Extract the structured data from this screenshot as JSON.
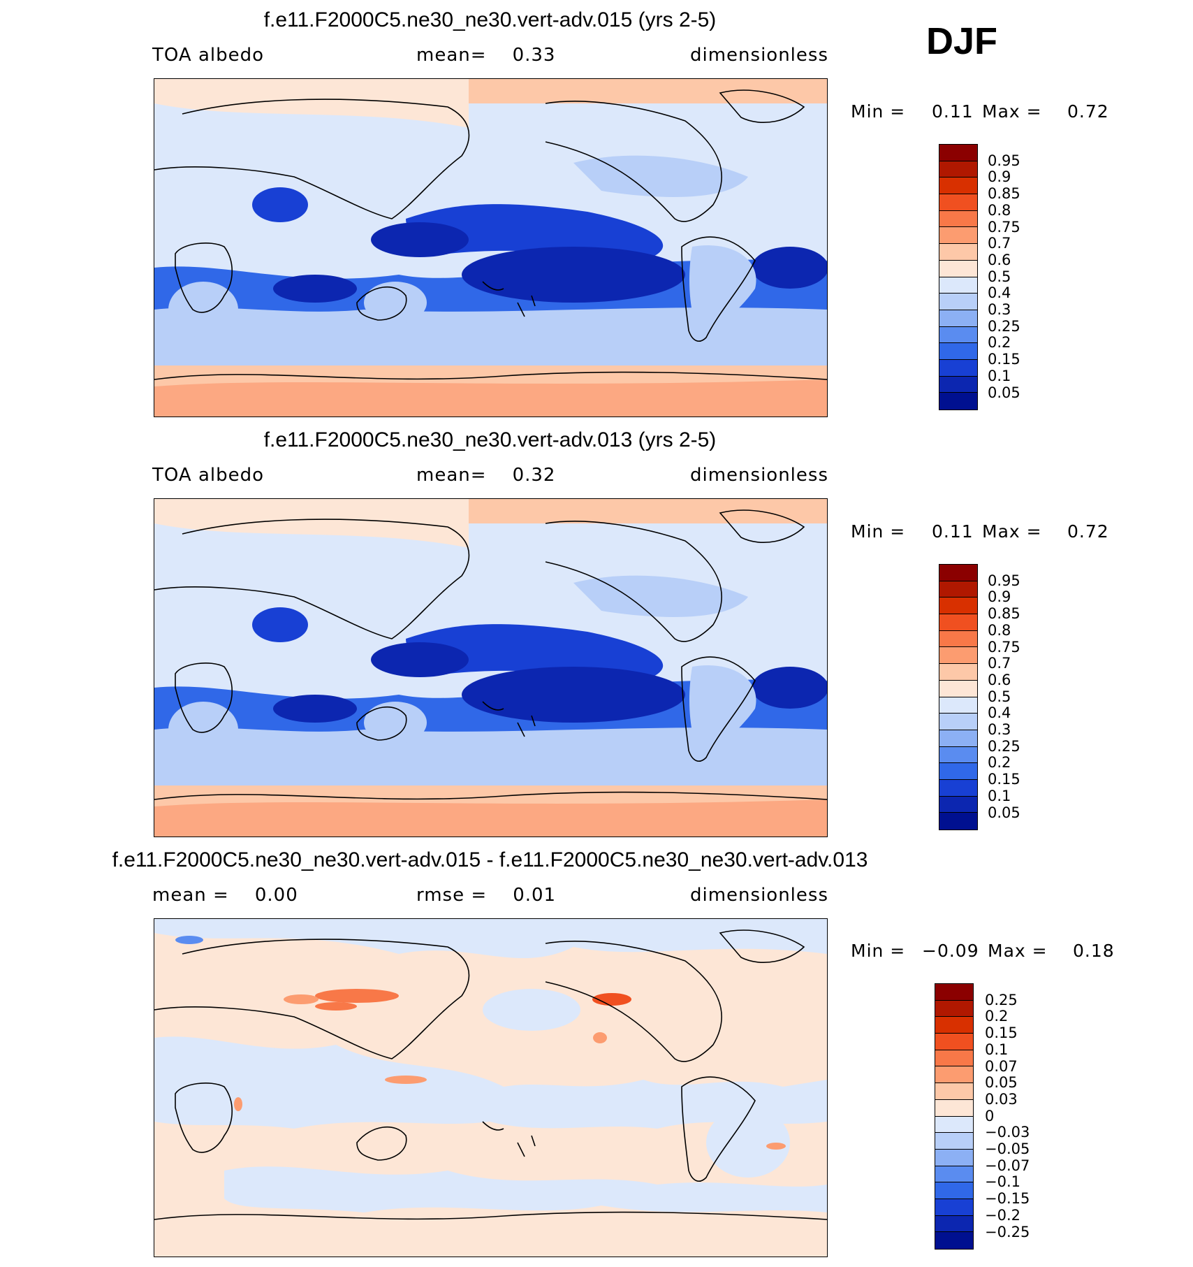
{
  "season": "DJF",
  "panels": [
    {
      "title": "f.e11.F2000C5.ne30_ne30.vert-adv.015 (yrs 2-5)",
      "left_text": "TOA albedo",
      "middle_text": "mean=    0.33",
      "right_text": "dimensionless",
      "min_label": "Min =",
      "min_value": "0.11",
      "max_label": "Max =",
      "max_value": "0.72"
    },
    {
      "title": "f.e11.F2000C5.ne30_ne30.vert-adv.013 (yrs 2-5)",
      "left_text": "TOA albedo",
      "middle_text": "mean=    0.32",
      "right_text": "dimensionless",
      "min_label": "Min =",
      "min_value": "0.11",
      "max_label": "Max =",
      "max_value": "0.72"
    },
    {
      "title": "f.e11.F2000C5.ne30_ne30.vert-adv.015 - f.e11.F2000C5.ne30_ne30.vert-adv.013",
      "left_text": "mean =    0.00",
      "middle_text": "rmse =    0.01",
      "right_text": "dimensionless",
      "min_label": "Min =",
      "min_value": "−0.09",
      "max_label": "Max =",
      "max_value": "0.18"
    }
  ],
  "colorbars": {
    "albedo": {
      "labels": [
        "0.95",
        "0.9",
        "0.85",
        "0.8",
        "0.75",
        "0.7",
        "0.6",
        "0.5",
        "0.4",
        "0.3",
        "0.25",
        "0.2",
        "0.15",
        "0.1",
        "0.05"
      ],
      "colors": [
        "#8b0000",
        "#b01800",
        "#d83000",
        "#f05020",
        "#f87848",
        "#fc9c70",
        "#fdc8a8",
        "#fde6d6",
        "#dce8fb",
        "#b8cff8",
        "#8cb0f4",
        "#5a8cf0",
        "#3068e8",
        "#1840d4",
        "#0c26b0",
        "#001090"
      ]
    },
    "diff": {
      "labels": [
        "0.25",
        "0.2",
        "0.15",
        "0.1",
        "0.07",
        "0.05",
        "0.03",
        "0",
        "−0.03",
        "−0.05",
        "−0.07",
        "−0.1",
        "−0.15",
        "−0.2",
        "−0.25"
      ],
      "colors": [
        "#8b0000",
        "#b01800",
        "#d83000",
        "#f05020",
        "#f87848",
        "#fc9c70",
        "#fdc8a8",
        "#fde6d6",
        "#dce8fb",
        "#b8cff8",
        "#8cb0f4",
        "#5a8cf0",
        "#3068e8",
        "#1840d4",
        "#0c26b0",
        "#001090"
      ]
    }
  }
}
